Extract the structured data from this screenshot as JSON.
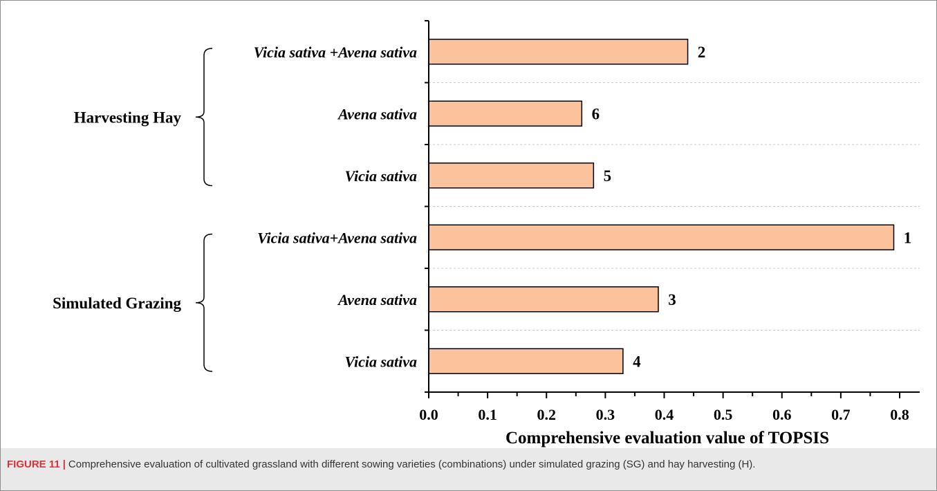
{
  "chart_data": {
    "type": "bar",
    "orientation": "horizontal",
    "xlabel": "Comprehensive evaluation value of TOPSIS",
    "xlim": [
      0.0,
      0.84
    ],
    "xticks": [
      "0.0",
      "0.1",
      "0.2",
      "0.3",
      "0.4",
      "0.5",
      "0.6",
      "0.7",
      "0.8"
    ],
    "groups": [
      {
        "name": "Harvesting Hay",
        "bars": [
          {
            "label": "Vicia sativa +Avena sativa",
            "value": 0.44,
            "rank": "2"
          },
          {
            "label": "Avena sativa",
            "value": 0.26,
            "rank": "6"
          },
          {
            "label": "Vicia sativa",
            "value": 0.28,
            "rank": "5"
          }
        ]
      },
      {
        "name": "Simulated Grazing",
        "bars": [
          {
            "label": "Vicia sativa+Avena sativa",
            "value": 0.79,
            "rank": "1"
          },
          {
            "label": "Avena sativa",
            "value": 0.39,
            "rank": "3"
          },
          {
            "label": "Vicia sativa",
            "value": 0.33,
            "rank": "4"
          }
        ]
      }
    ],
    "bar_color": "#fbc39c",
    "grid": "horizontal dashed separators"
  },
  "caption": {
    "label": "FIGURE 11",
    "separator": "|",
    "text": "Comprehensive evaluation of cultivated grassland with different sowing varieties (combinations) under simulated grazing (SG) and hay harvesting (H)."
  }
}
